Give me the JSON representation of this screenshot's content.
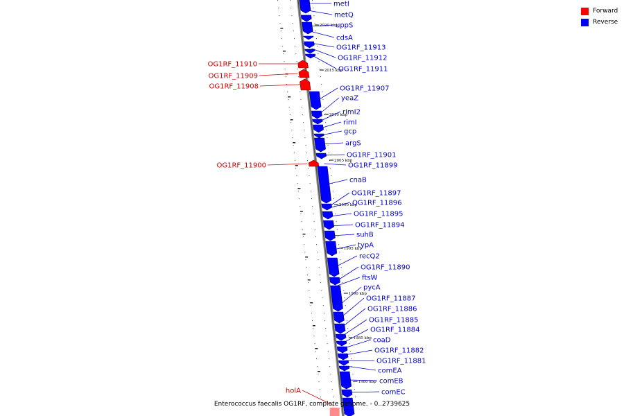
{
  "legend": {
    "forward_label": "Forward",
    "reverse_label": "Reverse",
    "forward_color": "#ff0000",
    "reverse_color": "#0000ff"
  },
  "caption": "Enterococcus faecalis OG1RF, complete genome. - 0..2739625",
  "label_colors": {
    "forward": "#cc0000",
    "reverse": "#0000cc"
  },
  "ticks": [
    "2020 kbp",
    "2015 kbp",
    "2010 kbp",
    "2005 kbp",
    "2000 kbp",
    "1995 kbp",
    "1990 kbp",
    "1985 kbp",
    "1980 kbp"
  ],
  "genes": [
    {
      "name": "metI",
      "strand": "reverse"
    },
    {
      "name": "metQ",
      "strand": "reverse"
    },
    {
      "name": "uppS",
      "strand": "reverse"
    },
    {
      "name": "cdsA",
      "strand": "reverse"
    },
    {
      "name": "OG1RF_11913",
      "strand": "reverse"
    },
    {
      "name": "OG1RF_11912",
      "strand": "reverse"
    },
    {
      "name": "OG1RF_11911",
      "strand": "reverse"
    },
    {
      "name": "OG1RF_11910",
      "strand": "forward"
    },
    {
      "name": "OG1RF_11909",
      "strand": "forward"
    },
    {
      "name": "OG1RF_11908",
      "strand": "forward"
    },
    {
      "name": "OG1RF_11907",
      "strand": "reverse"
    },
    {
      "name": "yeaZ",
      "strand": "reverse"
    },
    {
      "name": "rimI2",
      "strand": "reverse"
    },
    {
      "name": "rimI",
      "strand": "reverse"
    },
    {
      "name": "gcp",
      "strand": "reverse"
    },
    {
      "name": "argS",
      "strand": "reverse"
    },
    {
      "name": "OG1RF_11901",
      "strand": "reverse"
    },
    {
      "name": "OG1RF_11900",
      "strand": "forward"
    },
    {
      "name": "OG1RF_11899",
      "strand": "reverse"
    },
    {
      "name": "cnaB",
      "strand": "reverse"
    },
    {
      "name": "OG1RF_11897",
      "strand": "reverse"
    },
    {
      "name": "OG1RF_11896",
      "strand": "reverse"
    },
    {
      "name": "OG1RF_11895",
      "strand": "reverse"
    },
    {
      "name": "OG1RF_11894",
      "strand": "reverse"
    },
    {
      "name": "suhB",
      "strand": "reverse"
    },
    {
      "name": "typA",
      "strand": "reverse"
    },
    {
      "name": "recQ2",
      "strand": "reverse"
    },
    {
      "name": "OG1RF_11890",
      "strand": "reverse"
    },
    {
      "name": "ftsW",
      "strand": "reverse"
    },
    {
      "name": "pycA",
      "strand": "reverse"
    },
    {
      "name": "OG1RF_11887",
      "strand": "reverse"
    },
    {
      "name": "OG1RF_11886",
      "strand": "reverse"
    },
    {
      "name": "OG1RF_11885",
      "strand": "reverse"
    },
    {
      "name": "OG1RF_11884",
      "strand": "reverse"
    },
    {
      "name": "coaD",
      "strand": "reverse"
    },
    {
      "name": "OG1RF_11882",
      "strand": "reverse"
    },
    {
      "name": "OG1RF_11881",
      "strand": "reverse"
    },
    {
      "name": "comEA",
      "strand": "reverse"
    },
    {
      "name": "comEB",
      "strand": "reverse"
    },
    {
      "name": "comEC",
      "strand": "reverse"
    },
    {
      "name": "holA",
      "strand": "forward"
    }
  ]
}
